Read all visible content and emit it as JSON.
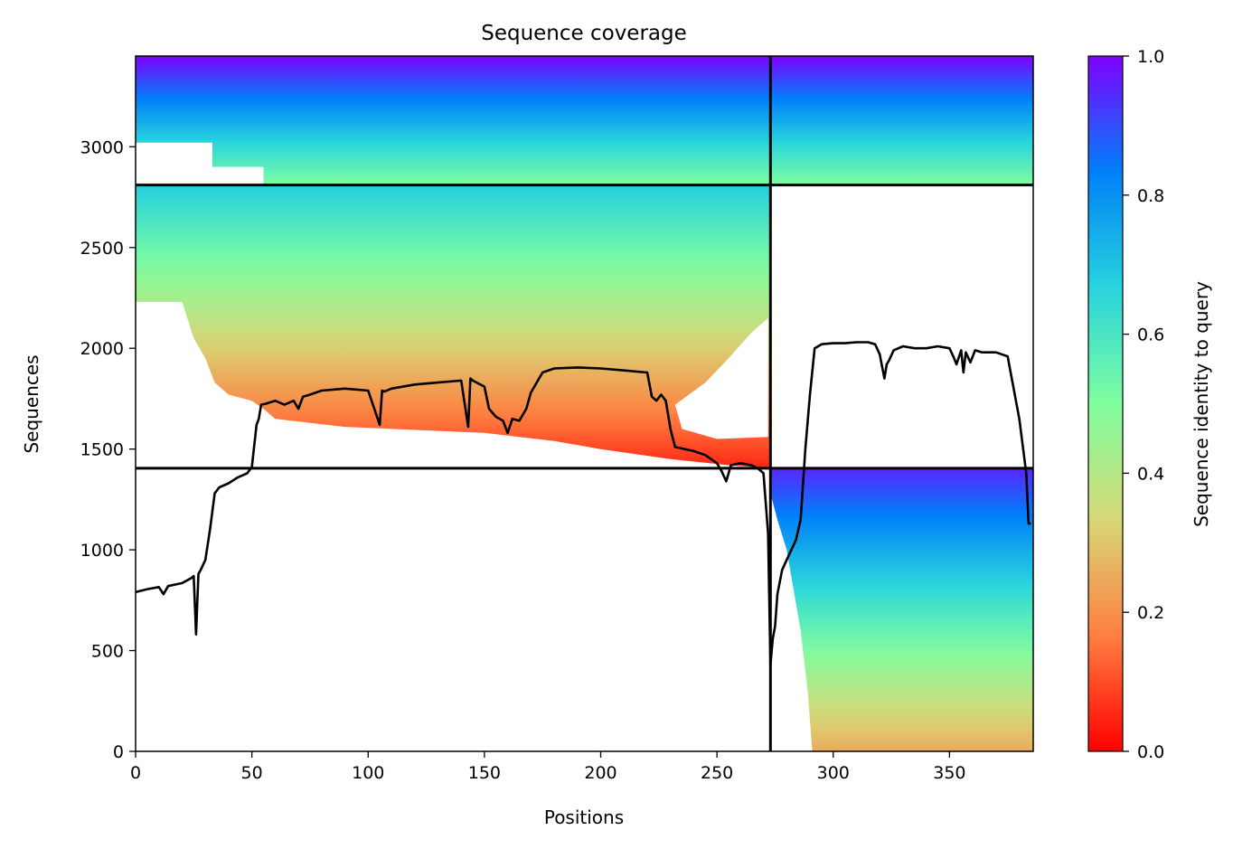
{
  "chart_data": {
    "type": "heatmap",
    "title": "Sequence coverage",
    "xlabel": "Positions",
    "ylabel": "Sequences",
    "xlim": [
      0,
      386
    ],
    "ylim": [
      0,
      3450
    ],
    "x_ticks": [
      "0",
      "50",
      "100",
      "150",
      "200",
      "250",
      "300",
      "350"
    ],
    "y_ticks": [
      "0",
      "500",
      "1000",
      "1500",
      "2000",
      "2500",
      "3000"
    ],
    "colorbar": {
      "label": "Sequence identity to query",
      "range": [
        0,
        1
      ],
      "ticks": [
        "0.0",
        "0.2",
        "0.4",
        "0.6",
        "0.8",
        "1.0"
      ],
      "colormap": "rainbow_r",
      "stops": [
        "#ff0000",
        "#ff7f41",
        "#d7d777",
        "#80fe9f",
        "#28d4dd",
        "#0080f9",
        "#7f00ff"
      ]
    },
    "dividers": {
      "vertical_x": 273,
      "horizontal_y": [
        1405,
        2810
      ]
    },
    "blocks": [
      {
        "x": [
          0,
          273
        ],
        "y": [
          2810,
          3450
        ],
        "identity_bottom": 0.5,
        "identity_top": 1.0
      },
      {
        "x": [
          273,
          386
        ],
        "y": [
          2810,
          3450
        ],
        "identity_bottom": 0.5,
        "identity_top": 1.0
      },
      {
        "x": [
          0,
          273
        ],
        "y": [
          1405,
          2810
        ],
        "identity_bottom": 0.05,
        "identity_top": 0.68
      },
      {
        "x": [
          273,
          386
        ],
        "y": [
          0,
          1405
        ],
        "identity_bottom": 0.25,
        "identity_top": 0.95
      }
    ],
    "coverage": {
      "x": [
        0,
        5,
        10,
        12,
        14,
        20,
        24,
        25,
        26,
        27,
        28,
        30,
        32,
        34,
        36,
        40,
        44,
        48,
        50,
        52,
        53,
        54,
        56,
        60,
        64,
        68,
        70,
        72,
        75,
        80,
        90,
        100,
        105,
        106,
        107,
        110,
        120,
        130,
        140,
        143,
        144,
        145,
        150,
        152,
        155,
        158,
        160,
        162,
        165,
        168,
        170,
        175,
        180,
        190,
        200,
        210,
        220,
        222,
        224,
        226,
        228,
        230,
        232,
        240,
        245,
        250,
        252,
        254,
        256,
        260,
        265,
        268,
        270,
        272,
        273,
        274,
        275,
        276,
        278,
        280,
        282,
        284,
        286,
        288,
        290,
        292,
        295,
        300,
        305,
        310,
        315,
        318,
        320,
        322,
        323,
        324,
        326,
        330,
        335,
        340,
        345,
        350,
        352,
        353,
        355,
        356,
        357,
        359,
        361,
        364,
        370,
        375,
        380,
        383,
        384,
        385
      ],
      "y": [
        790,
        805,
        815,
        780,
        820,
        835,
        860,
        870,
        580,
        880,
        900,
        950,
        1100,
        1280,
        1310,
        1330,
        1360,
        1380,
        1410,
        1620,
        1650,
        1720,
        1725,
        1740,
        1720,
        1740,
        1700,
        1760,
        1770,
        1790,
        1800,
        1790,
        1620,
        1790,
        1785,
        1800,
        1820,
        1830,
        1840,
        1610,
        1850,
        1840,
        1810,
        1700,
        1660,
        1640,
        1580,
        1650,
        1640,
        1700,
        1780,
        1880,
        1900,
        1905,
        1900,
        1890,
        1880,
        1760,
        1740,
        1770,
        1740,
        1600,
        1510,
        1490,
        1470,
        1430,
        1390,
        1340,
        1420,
        1430,
        1420,
        1400,
        1380,
        1080,
        430,
        560,
        620,
        780,
        900,
        950,
        1000,
        1050,
        1150,
        1500,
        1770,
        2000,
        2020,
        2025,
        2025,
        2030,
        2030,
        2020,
        1970,
        1850,
        1920,
        1940,
        1990,
        2010,
        2000,
        2000,
        2010,
        2000,
        1950,
        1920,
        1990,
        1880,
        1980,
        1930,
        1990,
        1980,
        1980,
        1960,
        1650,
        1380,
        1130,
        1130
      ]
    }
  }
}
